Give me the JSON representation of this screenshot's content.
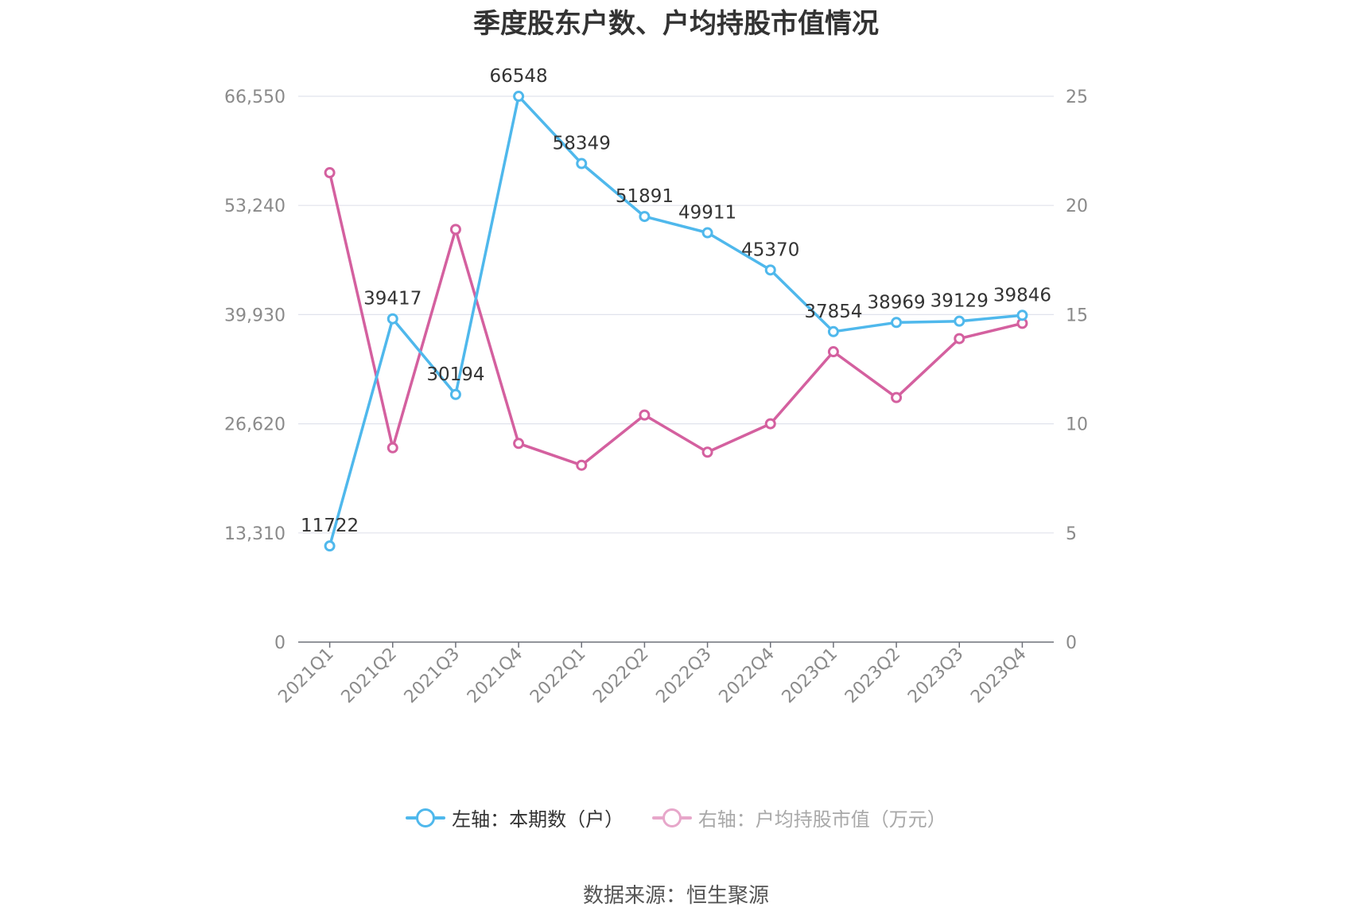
{
  "chart_data": {
    "type": "line",
    "title": "季度股东户数、户均持股市值情况",
    "categories": [
      "2021Q1",
      "2021Q2",
      "2021Q3",
      "2021Q4",
      "2022Q1",
      "2022Q2",
      "2022Q3",
      "2022Q4",
      "2023Q1",
      "2023Q2",
      "2023Q3",
      "2023Q4"
    ],
    "left_axis": {
      "ticks": [
        "0",
        "13,310",
        "26,620",
        "39,930",
        "53,240",
        "66,550"
      ],
      "ylim": [
        0,
        66550
      ]
    },
    "right_axis": {
      "ticks": [
        "0",
        "5",
        "10",
        "15",
        "20",
        "25"
      ],
      "ylim": [
        0,
        25
      ]
    },
    "series": [
      {
        "name": "左轴：本期数（户）",
        "axis": "left",
        "color": "#4fb8ec",
        "values": [
          11722,
          39417,
          30194,
          66548,
          58349,
          51891,
          49911,
          45370,
          37854,
          38969,
          39129,
          39846
        ],
        "labels": [
          "11722",
          "39417",
          "30194",
          "66548",
          "58349",
          "51891",
          "49911",
          "45370",
          "37854",
          "38969",
          "39129",
          "39846"
        ]
      },
      {
        "name": "右轴：户均持股市值（万元）",
        "axis": "right",
        "color": "#d4609f",
        "values": [
          21.5,
          8.9,
          18.9,
          9.1,
          8.1,
          10.4,
          8.7,
          10.0,
          13.3,
          11.2,
          13.9,
          14.6
        ]
      }
    ],
    "grid": true,
    "legend_position": "bottom"
  },
  "source": "数据来源：恒生聚源"
}
